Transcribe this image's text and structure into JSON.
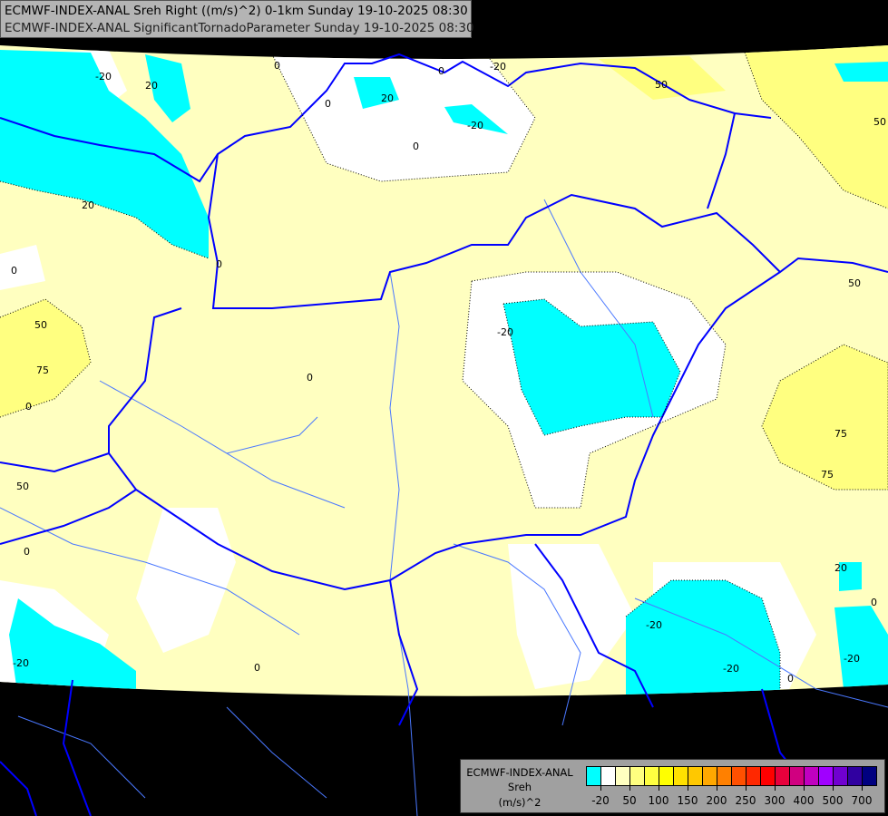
{
  "title": {
    "line1": "ECMWF-INDEX-ANAL Sreh Right ((m/s)^2) 0-1km Sunday 19-10-2025 08:30",
    "line2": "ECMWF-INDEX-ANAL SignificantTornadoParameter Sunday 19-10-2025 08:30"
  },
  "legend": {
    "model": "ECMWF-INDEX-ANAL",
    "variable": "Sreh",
    "unit": "(m/s)^2",
    "colors": [
      "#00ffff",
      "#ffffff",
      "#ffffc0",
      "#ffff80",
      "#ffff40",
      "#ffff00",
      "#ffe000",
      "#ffc800",
      "#ffa800",
      "#ff8000",
      "#ff5000",
      "#ff2800",
      "#ff0000",
      "#e8003c",
      "#d00080",
      "#c000c0",
      "#a000ff",
      "#7000d0",
      "#3000a0",
      "#000080"
    ],
    "tick_labels": [
      "-20",
      "50",
      "100",
      "150",
      "200",
      "250",
      "300",
      "400",
      "500",
      "700"
    ]
  },
  "map": {
    "colors": {
      "cyan": "#00ffff",
      "white": "#ffffff",
      "light_yellow": "#ffffc0",
      "yellow": "#ffff80",
      "border": "#0000ff",
      "river": "#5080ff",
      "nodata": "#000000"
    },
    "contour_labels": [
      "-20",
      "20",
      "0",
      "0",
      "-20",
      "50",
      "0",
      "20",
      "-20",
      "0",
      "50",
      "0",
      "50",
      "75",
      "0",
      "0",
      "-20",
      "50",
      "75",
      "75",
      "50",
      "0",
      "20",
      "-20",
      "0",
      "-20",
      "0",
      "0",
      "-20",
      "-20",
      "0",
      "20"
    ]
  }
}
